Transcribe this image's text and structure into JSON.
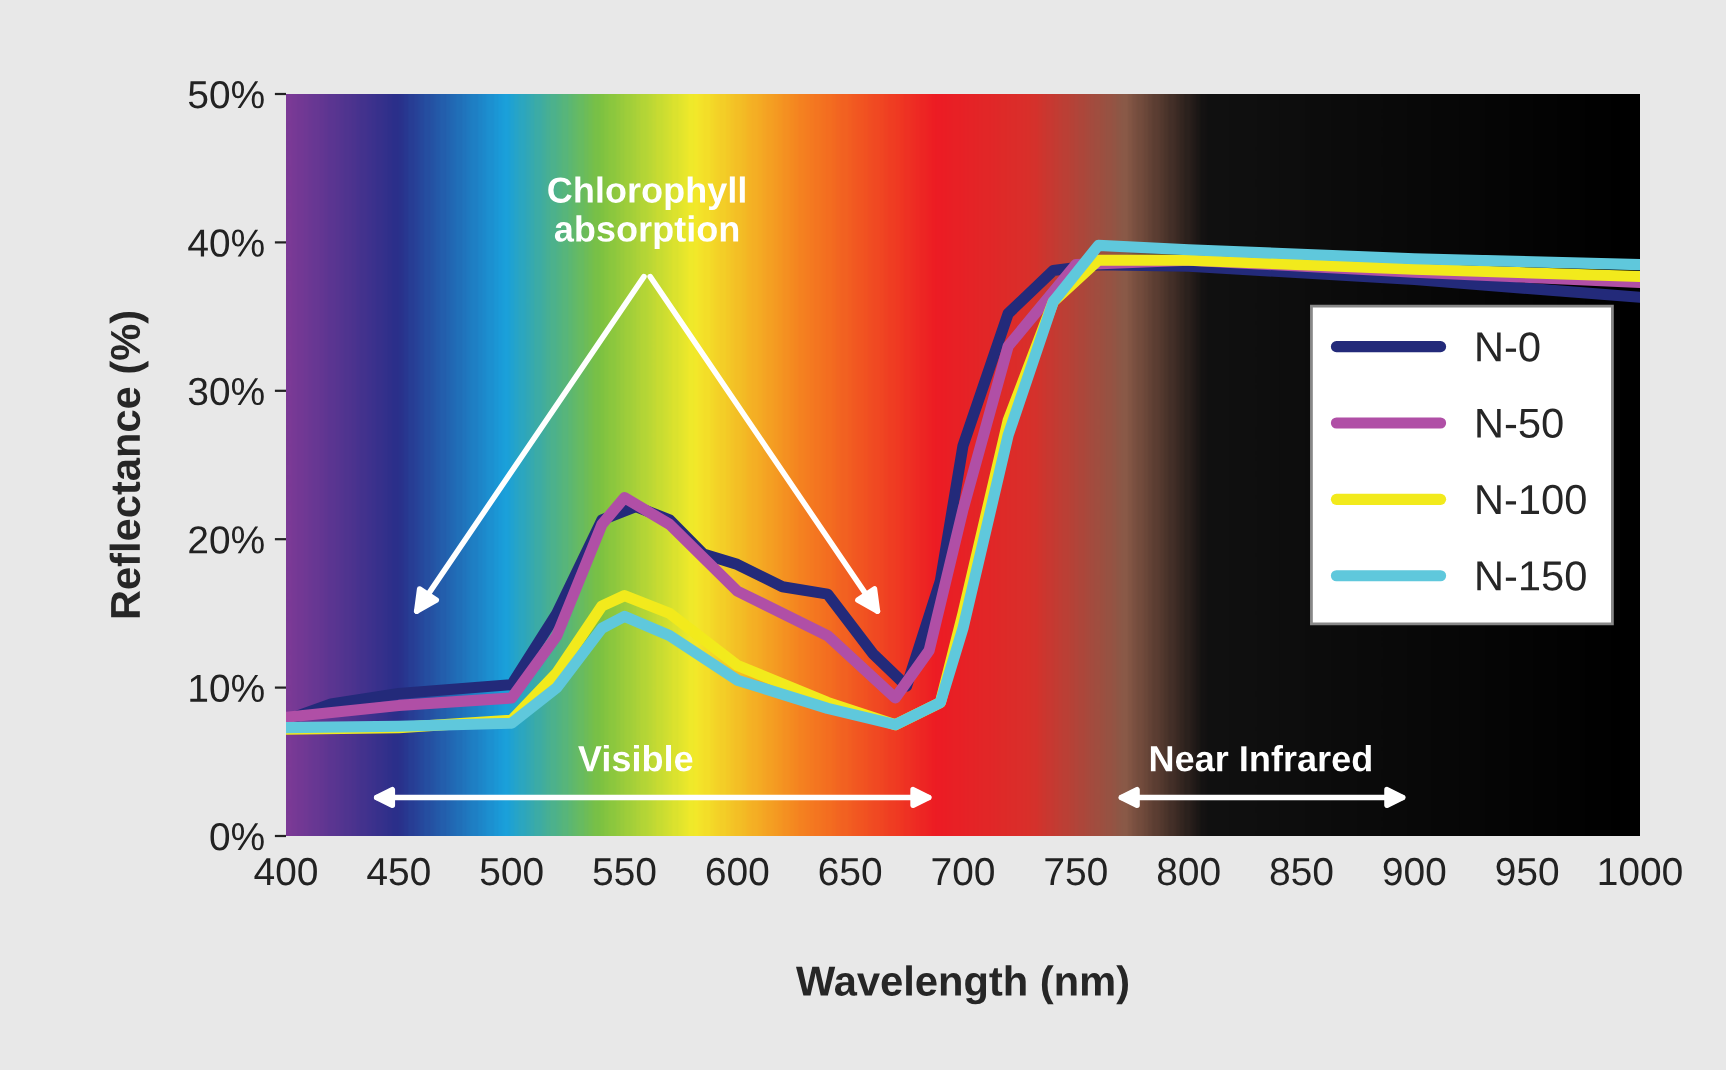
{
  "chart_data": {
    "type": "line",
    "xlabel": "Wavelength (nm)",
    "ylabel": "Reflectance (%)",
    "xlim": [
      400,
      1000
    ],
    "xticks": [
      400,
      450,
      500,
      550,
      600,
      650,
      700,
      750,
      800,
      850,
      900,
      950,
      1000
    ],
    "ylim": [
      0,
      50
    ],
    "yticks": [
      {
        "value": 0,
        "label": "0%"
      },
      {
        "value": 10,
        "label": "10%"
      },
      {
        "value": 20,
        "label": "20%"
      },
      {
        "value": 30,
        "label": "30%"
      },
      {
        "value": 40,
        "label": "40%"
      },
      {
        "value": 50,
        "label": "50%"
      }
    ],
    "grid": false,
    "legend": "right",
    "marker": "none",
    "line_style": "solid",
    "annotations": [
      "Chlorophyll\nabsorption",
      "Visible",
      "Near Infrared"
    ],
    "series": [
      {
        "name": "N-0",
        "color": "#232a7a",
        "x": [
          400,
          420,
          450,
          500,
          520,
          540,
          555,
          570,
          585,
          600,
          620,
          640,
          660,
          675,
          690,
          700,
          720,
          740,
          760,
          800,
          900,
          1000
        ],
        "values": [
          7.8,
          8.9,
          9.6,
          10.2,
          15,
          21.3,
          22.2,
          21.3,
          19.0,
          18.3,
          16.8,
          16.3,
          12.3,
          10.1,
          17.2,
          26.3,
          35.2,
          38.1,
          38.5,
          38.4,
          37.5,
          36.3
        ]
      },
      {
        "name": "N-50",
        "color": "#b04fa6",
        "x": [
          400,
          450,
          500,
          520,
          540,
          550,
          570,
          600,
          640,
          670,
          685,
          700,
          720,
          750,
          800,
          900,
          1000
        ],
        "values": [
          8.0,
          8.8,
          9.3,
          13.5,
          21.0,
          22.8,
          21.0,
          16.5,
          13.5,
          9.3,
          12.5,
          22.0,
          33.0,
          38.5,
          38.8,
          38.0,
          37.3
        ]
      },
      {
        "name": "N-100",
        "color": "#f2ea1c",
        "x": [
          400,
          450,
          500,
          520,
          540,
          550,
          570,
          600,
          640,
          670,
          690,
          700,
          720,
          740,
          760,
          800,
          900,
          1000
        ],
        "values": [
          7.2,
          7.3,
          7.8,
          11.0,
          15.5,
          16.2,
          15.0,
          11.5,
          9.0,
          7.5,
          9.0,
          15.0,
          28.0,
          36.0,
          38.8,
          38.8,
          38.2,
          37.7
        ]
      },
      {
        "name": "N-150",
        "color": "#5fc8dc",
        "x": [
          400,
          450,
          500,
          520,
          540,
          550,
          570,
          600,
          640,
          670,
          690,
          700,
          720,
          740,
          760,
          800,
          900,
          1000
        ],
        "values": [
          7.3,
          7.4,
          7.6,
          10.0,
          14.0,
          14.8,
          13.5,
          10.5,
          8.6,
          7.5,
          9.0,
          14.0,
          27.0,
          36.0,
          39.8,
          39.5,
          38.9,
          38.5
        ]
      }
    ]
  }
}
